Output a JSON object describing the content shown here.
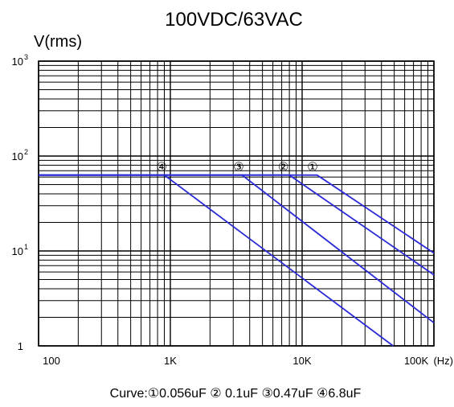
{
  "chart_data": {
    "type": "line",
    "title": "100VDC/63VAC",
    "ylabel": "V(rms)",
    "xlabel": "",
    "x_unit": "(Hz)",
    "x_scale": "log",
    "y_scale": "log",
    "xlim": [
      100,
      100000
    ],
    "ylim": [
      1,
      1000
    ],
    "grid": true,
    "x_ticks": [
      {
        "value": 100,
        "label": "100"
      },
      {
        "value": 1000,
        "label": "1K"
      },
      {
        "value": 10000,
        "label": "10K"
      },
      {
        "value": 100000,
        "label": "100K"
      }
    ],
    "y_ticks": [
      {
        "value": 1,
        "base": "1",
        "exp": ""
      },
      {
        "value": 10,
        "base": "10",
        "exp": "1"
      },
      {
        "value": 100,
        "base": "10",
        "exp": "2"
      },
      {
        "value": 1000,
        "base": "10",
        "exp": "3"
      }
    ],
    "line_color": "#2b2bd6",
    "series": [
      {
        "marker": "①",
        "x": [
          100,
          13000,
          100000
        ],
        "y": [
          63,
          63,
          9.5
        ]
      },
      {
        "marker": "②",
        "x": [
          100,
          8000,
          100000
        ],
        "y": [
          63,
          63,
          5.6
        ]
      },
      {
        "marker": "③",
        "x": [
          100,
          3500,
          100000
        ],
        "y": [
          63,
          63,
          1.75
        ]
      },
      {
        "marker": "④",
        "x": [
          100,
          900,
          50000
        ],
        "y": [
          63,
          63,
          0.98
        ]
      }
    ],
    "markers": [
      {
        "label": "①",
        "x": 12000,
        "y": 77
      },
      {
        "label": "②",
        "x": 7200,
        "y": 77
      },
      {
        "label": "③",
        "x": 3300,
        "y": 77
      },
      {
        "label": "④",
        "x": 860,
        "y": 77
      }
    ],
    "caption": "Curve:①0.056uF ② 0.1uF ③0.47uF ④6.8uF"
  }
}
